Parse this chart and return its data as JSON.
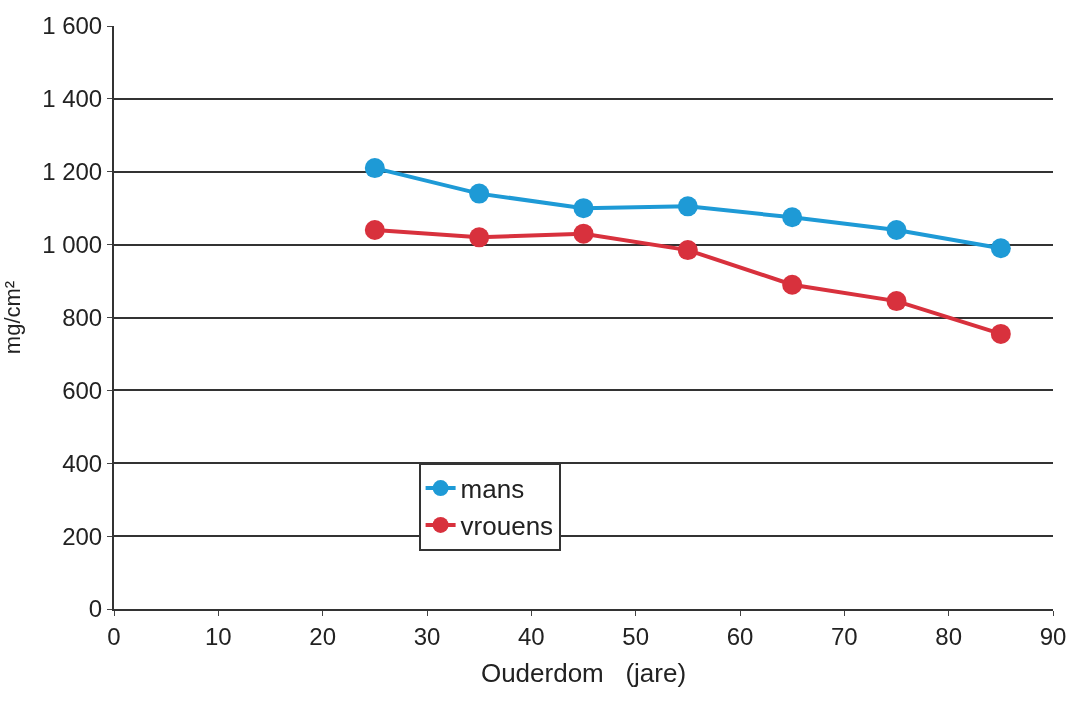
{
  "chart_data": {
    "type": "line",
    "xlabel": "Ouderdom   (jare)",
    "ylabel": "mg/cm²",
    "x": [
      25,
      35,
      45,
      55,
      65,
      75,
      85
    ],
    "series": [
      {
        "name": "mans",
        "color": "#1e9ad6",
        "values": [
          1210,
          1140,
          1100,
          1105,
          1075,
          1040,
          990
        ]
      },
      {
        "name": "vrouens",
        "color": "#d8313d",
        "values": [
          1040,
          1020,
          1030,
          985,
          890,
          845,
          755
        ]
      }
    ],
    "xlim": [
      0,
      90
    ],
    "xticks": [
      0,
      10,
      20,
      30,
      40,
      50,
      60,
      70,
      80,
      90
    ],
    "ylim": [
      0,
      1600
    ],
    "yticks": [
      0,
      200,
      400,
      600,
      800,
      {
        "value": 1000,
        "label": "1 000"
      },
      {
        "value": 1200,
        "label": "1 200"
      },
      {
        "value": 1400,
        "label": "1 400"
      },
      {
        "value": 1600,
        "label": "1 600"
      }
    ],
    "grid": "y",
    "legend": "bottom",
    "marker": "circle",
    "line_style": "solid"
  }
}
